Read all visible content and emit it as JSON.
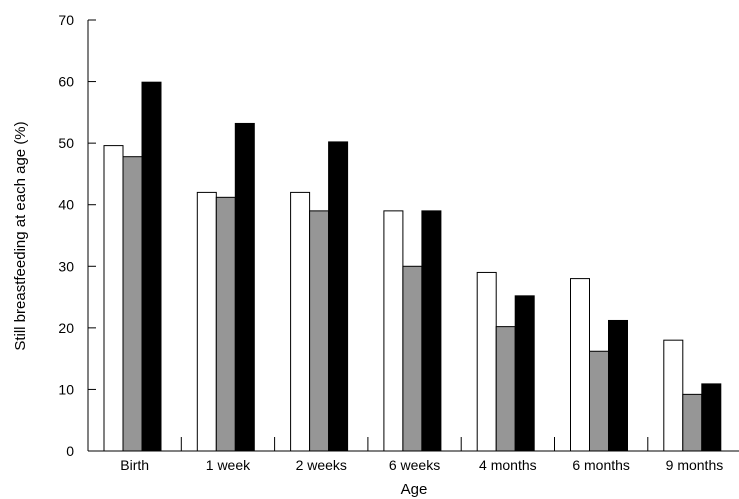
{
  "chart_data": {
    "type": "bar",
    "title": "",
    "xlabel": "Age",
    "ylabel": "Still breastfeeding at each age (%)",
    "ylim": [
      0,
      70
    ],
    "yticks": [
      0,
      10,
      20,
      30,
      40,
      50,
      60,
      70
    ],
    "grid": false,
    "legend": "none",
    "categories": [
      "Birth",
      "1 week",
      "2 weeks",
      "6 weeks",
      "4 months",
      "6 months",
      "9 months"
    ],
    "series": [
      {
        "color": "#ffffff",
        "values": [
          49.6,
          42.0,
          42.0,
          39.0,
          29.0,
          28.0,
          18.0
        ]
      },
      {
        "color": "#969696",
        "values": [
          47.8,
          41.2,
          39.0,
          30.0,
          20.2,
          16.2,
          9.2
        ]
      },
      {
        "color": "#000000",
        "values": [
          59.9,
          53.2,
          50.2,
          39.0,
          25.2,
          21.2,
          10.9
        ]
      }
    ]
  }
}
